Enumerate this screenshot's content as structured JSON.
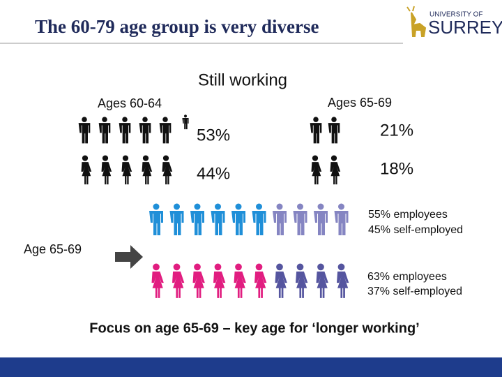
{
  "header": {
    "title": "The 60-79 age group is very diverse",
    "logo": {
      "line1": "UNIVERSITY OF",
      "line2": "SURREY"
    }
  },
  "still_working": {
    "title": "Still working",
    "groups": [
      {
        "label": "Ages 60-64",
        "men": "53%",
        "women": "44%"
      },
      {
        "label": "Ages 65-69",
        "men": "21%",
        "women": "18%"
      }
    ]
  },
  "age_65_69": {
    "label": "Age 65-69",
    "men": [
      "55% employees",
      "45% self-employed"
    ],
    "women": [
      "63% employees",
      "37% self-employed"
    ]
  },
  "footer": "Focus on age 65-69 – key age for ‘longer working’"
}
